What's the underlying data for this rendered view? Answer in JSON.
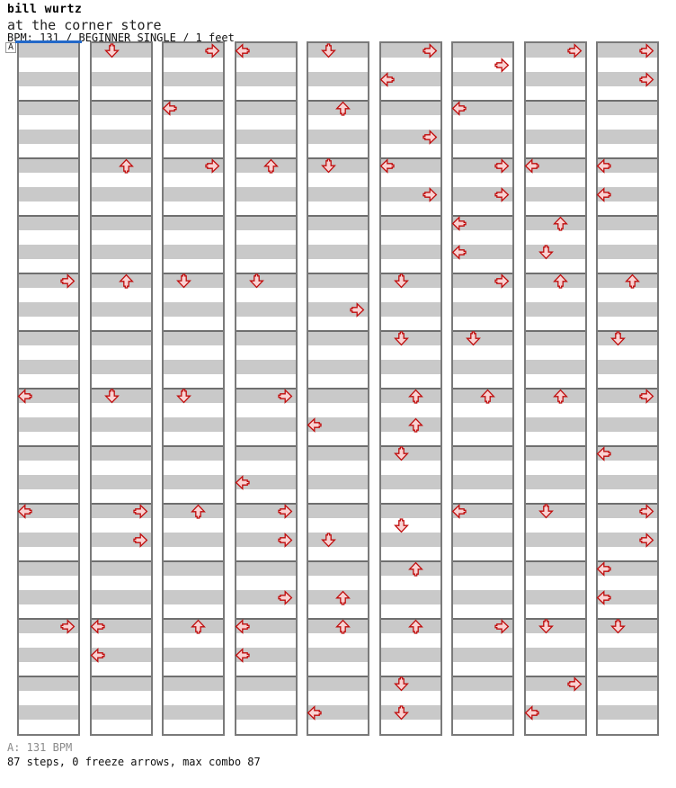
{
  "header": {
    "artist": "bill wurtz",
    "song": "at the corner store",
    "meta": "BPM: 131 / BEGINNER SINGLE / 1 feet"
  },
  "footer": {
    "bpm_line": "A: 131 BPM",
    "stats_line": "87 steps, 0 freeze arrows, max combo 87"
  },
  "colors": {
    "arrow_fill": "#f9d2d2",
    "arrow_outline": "#c00d0d",
    "stripe": "#c9c9c9",
    "grid_line": "#6f6f6f",
    "column_border": "#7a7a7a",
    "section_line": "#2268c8"
  },
  "chart_data": {
    "type": "stepchart",
    "title": "at the corner store",
    "total_steps": 87,
    "freeze_arrows": 0,
    "max_combo": 87,
    "bpm": 131,
    "columns_count": 9,
    "rows_per_column": 48,
    "rows_per_measure": 4,
    "lanes": [
      "left",
      "down",
      "up",
      "right"
    ],
    "section_marker": {
      "label": "A",
      "column": 0,
      "row": 0
    },
    "columns": [
      {
        "arrows": [
          [
            16,
            "right"
          ],
          [
            24,
            "left"
          ],
          [
            32,
            "left"
          ],
          [
            40,
            "right"
          ]
        ]
      },
      {
        "arrows": [
          [
            0,
            "down"
          ],
          [
            8,
            "up"
          ],
          [
            16,
            "up"
          ],
          [
            24,
            "down"
          ],
          [
            32,
            "right"
          ],
          [
            34,
            "right"
          ],
          [
            40,
            "left"
          ],
          [
            42,
            "left"
          ]
        ]
      },
      {
        "arrows": [
          [
            0,
            "right"
          ],
          [
            4,
            "left"
          ],
          [
            8,
            "right"
          ],
          [
            16,
            "down"
          ],
          [
            24,
            "down"
          ],
          [
            32,
            "up"
          ],
          [
            40,
            "up"
          ]
        ]
      },
      {
        "arrows": [
          [
            0,
            "left"
          ],
          [
            8,
            "up"
          ],
          [
            16,
            "down"
          ],
          [
            24,
            "right"
          ],
          [
            30,
            "left"
          ],
          [
            32,
            "right"
          ],
          [
            34,
            "right"
          ],
          [
            38,
            "right"
          ],
          [
            40,
            "left"
          ],
          [
            42,
            "left"
          ]
        ]
      },
      {
        "arrows": [
          [
            0,
            "down"
          ],
          [
            4,
            "up"
          ],
          [
            8,
            "down"
          ],
          [
            18,
            "right"
          ],
          [
            26,
            "left"
          ],
          [
            34,
            "down"
          ],
          [
            38,
            "up"
          ],
          [
            40,
            "up"
          ],
          [
            46,
            "left"
          ]
        ]
      },
      {
        "arrows": [
          [
            0,
            "right"
          ],
          [
            2,
            "left"
          ],
          [
            6,
            "right"
          ],
          [
            8,
            "left"
          ],
          [
            10,
            "right"
          ],
          [
            16,
            "down"
          ],
          [
            20,
            "down"
          ],
          [
            24,
            "up"
          ],
          [
            26,
            "up"
          ],
          [
            28,
            "down"
          ],
          [
            33,
            "down"
          ],
          [
            36,
            "up"
          ],
          [
            40,
            "up"
          ],
          [
            44,
            "down"
          ],
          [
            46,
            "down"
          ]
        ]
      },
      {
        "arrows": [
          [
            1,
            "right"
          ],
          [
            4,
            "left"
          ],
          [
            8,
            "right"
          ],
          [
            10,
            "right"
          ],
          [
            12,
            "left"
          ],
          [
            14,
            "left"
          ],
          [
            16,
            "right"
          ],
          [
            20,
            "down"
          ],
          [
            24,
            "up"
          ],
          [
            32,
            "left"
          ],
          [
            40,
            "right"
          ]
        ]
      },
      {
        "arrows": [
          [
            0,
            "right"
          ],
          [
            8,
            "left"
          ],
          [
            12,
            "up"
          ],
          [
            14,
            "down"
          ],
          [
            16,
            "up"
          ],
          [
            24,
            "up"
          ],
          [
            32,
            "down"
          ],
          [
            40,
            "down"
          ],
          [
            44,
            "right"
          ],
          [
            46,
            "left"
          ]
        ]
      },
      {
        "arrows": [
          [
            0,
            "right"
          ],
          [
            2,
            "right"
          ],
          [
            8,
            "left"
          ],
          [
            10,
            "left"
          ],
          [
            16,
            "up"
          ],
          [
            20,
            "down"
          ],
          [
            24,
            "right"
          ],
          [
            28,
            "left"
          ],
          [
            32,
            "right"
          ],
          [
            34,
            "right"
          ],
          [
            36,
            "left"
          ],
          [
            38,
            "left"
          ],
          [
            40,
            "down"
          ]
        ]
      }
    ]
  }
}
